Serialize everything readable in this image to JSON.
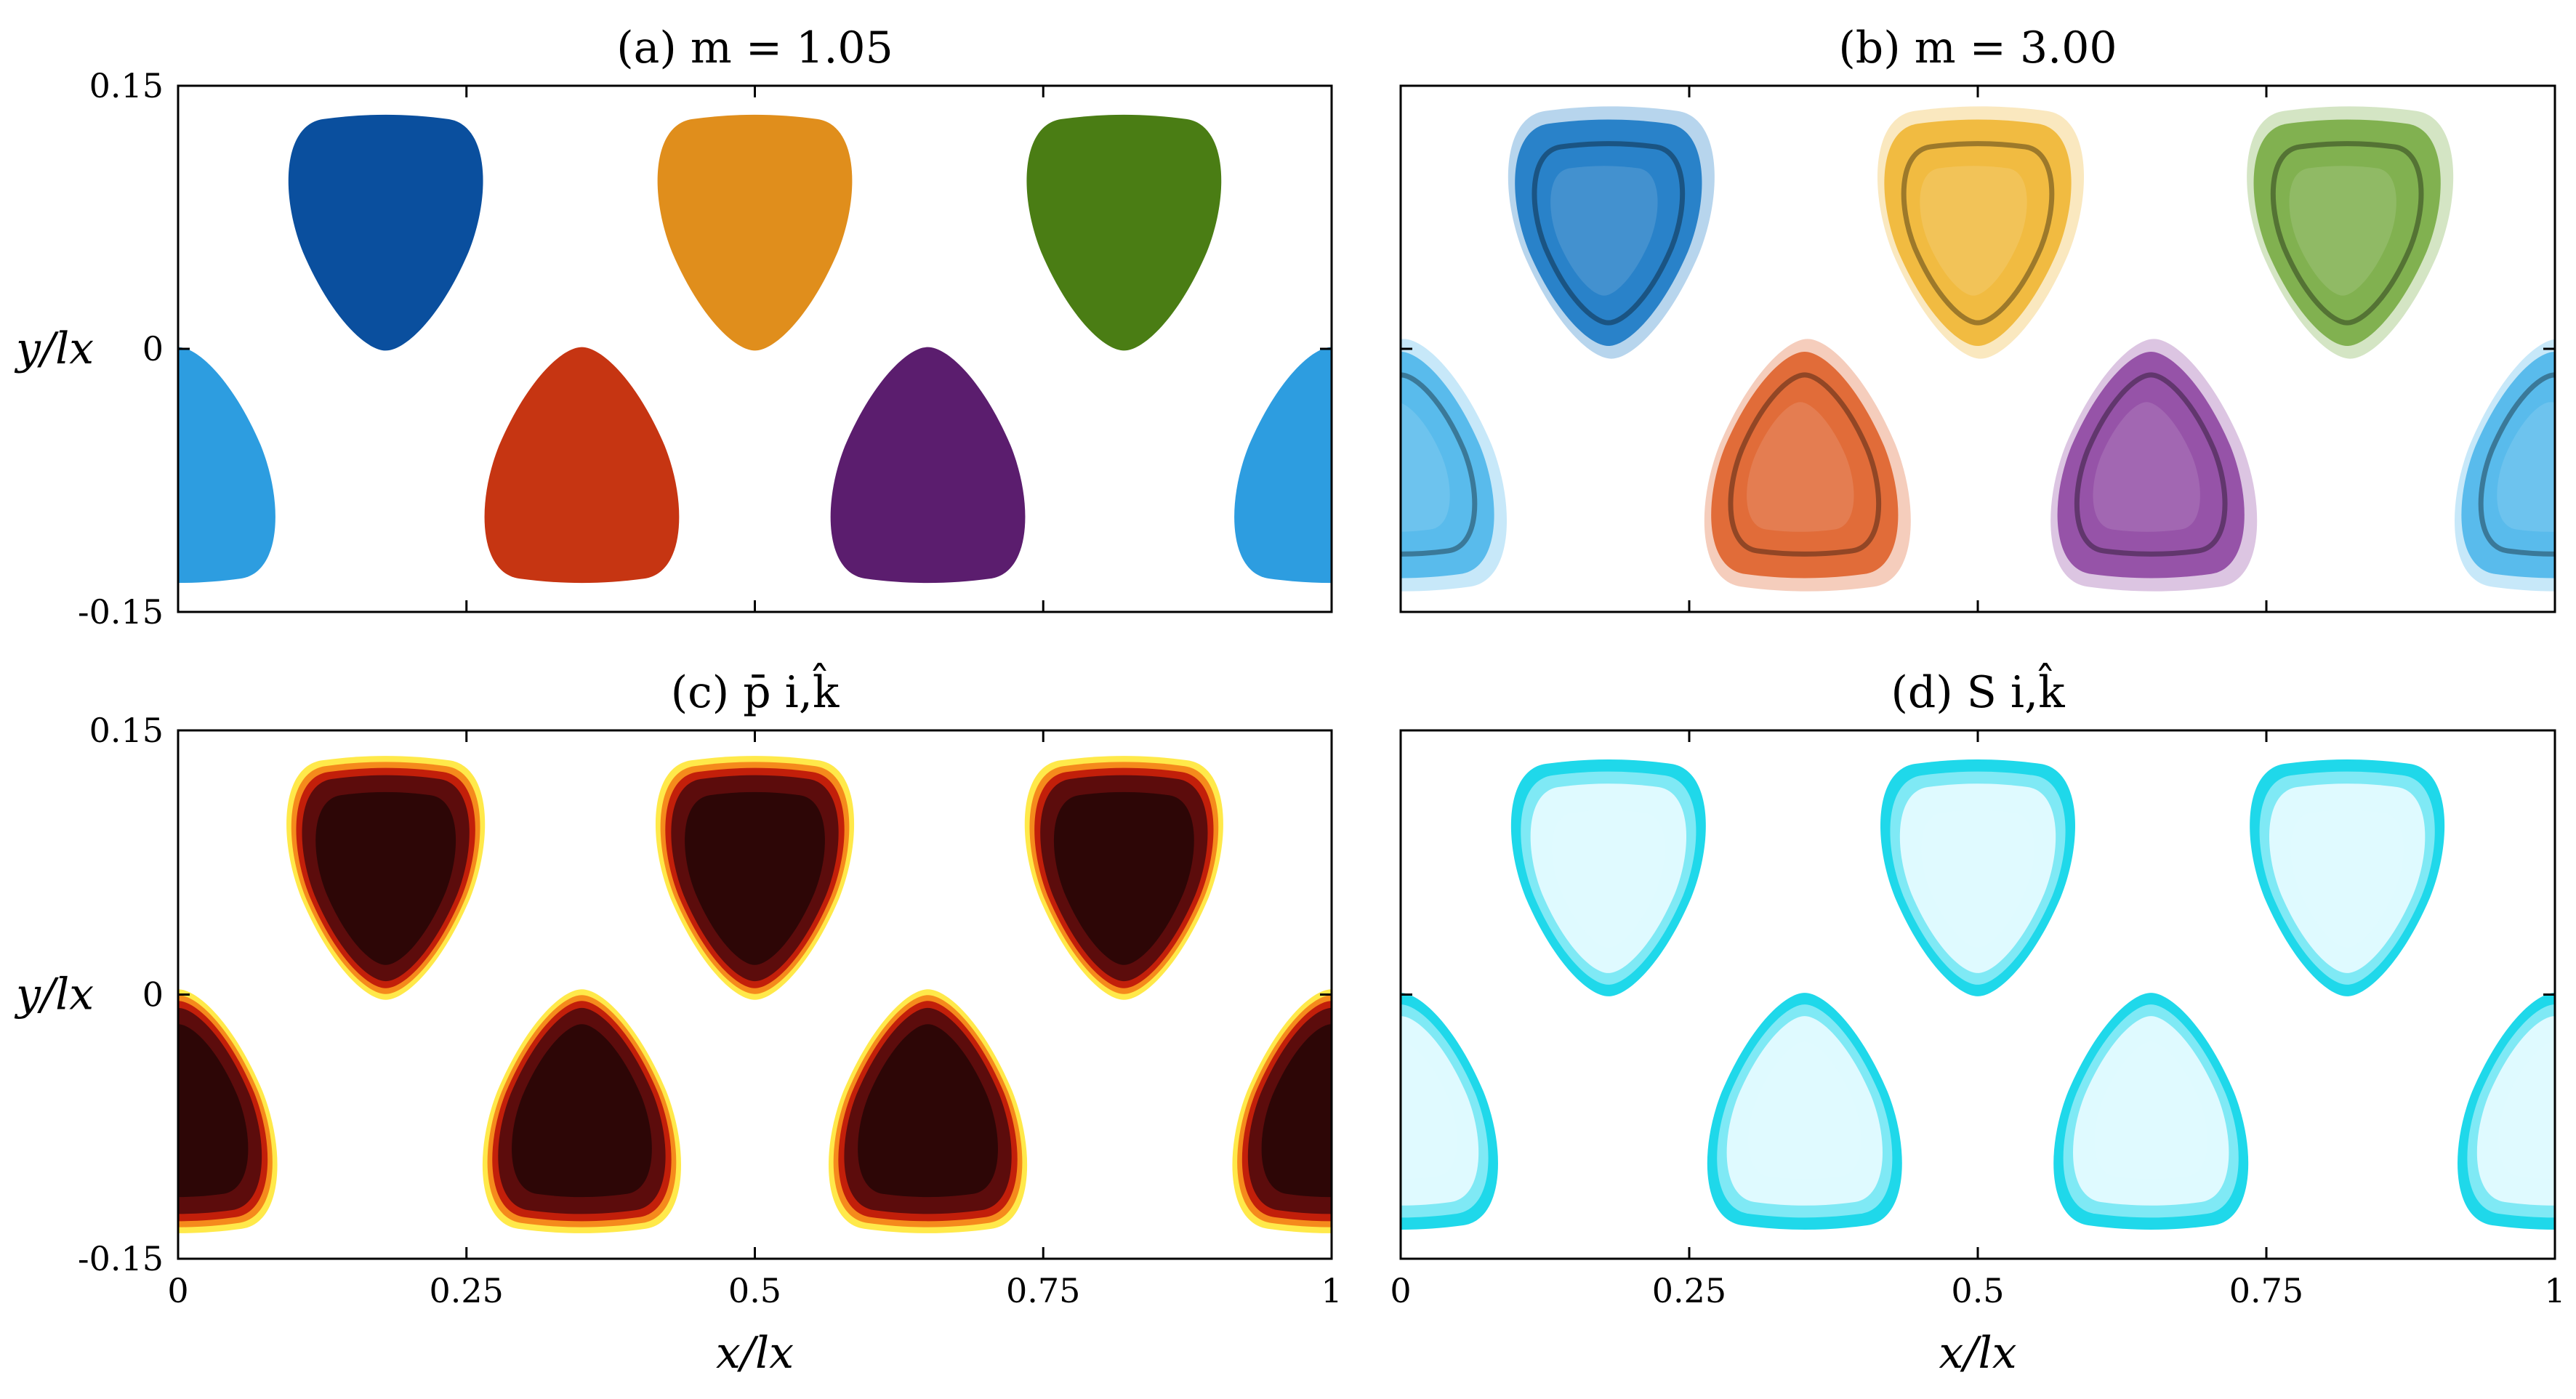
{
  "chart_data": [
    {
      "type": "scatter",
      "panel": "a",
      "title": "(a) m = 1.05",
      "mode": "solid-labels",
      "xlabel": "",
      "ylabel": "y/lx",
      "xlim": [
        0,
        1
      ],
      "ylim": [
        -0.15,
        0.15
      ],
      "xticks": [
        0,
        0.25,
        0.5,
        0.75,
        1
      ],
      "xtick_labels": [
        "",
        "",
        "",
        "",
        ""
      ],
      "yticks": [
        0.15,
        0,
        -0.15
      ],
      "ytick_labels": [
        "0.15",
        "0",
        "-0.15"
      ],
      "cells": [
        {
          "name": "blue-dark",
          "x": 0.18,
          "y": 0.065,
          "color": "#0a4f9e"
        },
        {
          "name": "orange",
          "x": 0.5,
          "y": 0.065,
          "color": "#e08e1c"
        },
        {
          "name": "green",
          "x": 0.82,
          "y": 0.065,
          "color": "#4a7d14"
        },
        {
          "name": "red",
          "x": 0.35,
          "y": -0.065,
          "color": "#c63512"
        },
        {
          "name": "purple",
          "x": 0.65,
          "y": -0.065,
          "color": "#5b1d6e"
        },
        {
          "name": "light-blue-left",
          "x": 0.0,
          "y": -0.065,
          "color": "#2d9de0"
        },
        {
          "name": "light-blue-right",
          "x": 1.0,
          "y": -0.065,
          "color": "#2d9de0"
        }
      ]
    },
    {
      "type": "scatter",
      "panel": "b",
      "title": "(b) m = 3.00",
      "mode": "fuzzy-labels",
      "xlabel": "",
      "ylabel": "",
      "xlim": [
        0,
        1
      ],
      "ylim": [
        -0.15,
        0.15
      ],
      "xticks": [
        0,
        0.25,
        0.5,
        0.75,
        1
      ],
      "xtick_labels": [
        "",
        "",
        "",
        "",
        ""
      ],
      "yticks": [
        0.15,
        0,
        -0.15
      ],
      "ytick_labels": [
        "",
        "",
        ""
      ],
      "cells": [
        {
          "name": "blue-dark",
          "x": 0.18,
          "y": 0.065,
          "color": "#1173c2"
        },
        {
          "name": "orange",
          "x": 0.5,
          "y": 0.065,
          "color": "#efb32a"
        },
        {
          "name": "green",
          "x": 0.82,
          "y": 0.065,
          "color": "#72a83c"
        },
        {
          "name": "red",
          "x": 0.35,
          "y": -0.065,
          "color": "#dd5a22"
        },
        {
          "name": "purple",
          "x": 0.65,
          "y": -0.065,
          "color": "#8a3e9e"
        },
        {
          "name": "light-blue-left",
          "x": 0.0,
          "y": -0.065,
          "color": "#45b3ea"
        },
        {
          "name": "light-blue-right",
          "x": 1.0,
          "y": -0.065,
          "color": "#45b3ea"
        }
      ]
    },
    {
      "type": "heatmap",
      "panel": "c",
      "title": "(c) p̄ i,k̂",
      "mode": "probability",
      "xlabel": "x/lx",
      "ylabel": "y/lx",
      "xlim": [
        0,
        1
      ],
      "ylim": [
        -0.15,
        0.15
      ],
      "xticks": [
        0,
        0.25,
        0.5,
        0.75,
        1
      ],
      "xtick_labels": [
        "0",
        "0.25",
        "0.5",
        "0.75",
        "1"
      ],
      "yticks": [
        0.15,
        0,
        -0.15
      ],
      "ytick_labels": [
        "0.15",
        "0",
        "-0.15"
      ],
      "colormap": [
        "#ffffff",
        "#ffe94a",
        "#f58a1c",
        "#c21f0a",
        "#5c0c0c",
        "#240606"
      ],
      "cells": [
        {
          "x": 0.18,
          "y": 0.065
        },
        {
          "x": 0.5,
          "y": 0.065
        },
        {
          "x": 0.82,
          "y": 0.065
        },
        {
          "x": 0.35,
          "y": -0.065
        },
        {
          "x": 0.65,
          "y": -0.065
        },
        {
          "x": 0.0,
          "y": -0.065
        },
        {
          "x": 1.0,
          "y": -0.065
        }
      ]
    },
    {
      "type": "heatmap",
      "panel": "d",
      "title": "(d) S i,k̂",
      "mode": "entropy",
      "xlabel": "x/lx",
      "ylabel": "",
      "xlim": [
        0,
        1
      ],
      "ylim": [
        -0.15,
        0.15
      ],
      "xticks": [
        0,
        0.25,
        0.5,
        0.75,
        1
      ],
      "xtick_labels": [
        "0",
        "0.25",
        "0.5",
        "0.75",
        "1"
      ],
      "yticks": [
        0.15,
        0,
        -0.15
      ],
      "ytick_labels": [
        "",
        "",
        ""
      ],
      "colormap": [
        "#ffffff",
        "#dffaff",
        "#7fe9f5",
        "#1fd8ea"
      ],
      "cells": [
        {
          "x": 0.18,
          "y": 0.065
        },
        {
          "x": 0.5,
          "y": 0.065
        },
        {
          "x": 0.82,
          "y": 0.065
        },
        {
          "x": 0.35,
          "y": -0.065
        },
        {
          "x": 0.65,
          "y": -0.065
        },
        {
          "x": 0.0,
          "y": -0.065
        },
        {
          "x": 1.0,
          "y": -0.065
        }
      ]
    }
  ]
}
